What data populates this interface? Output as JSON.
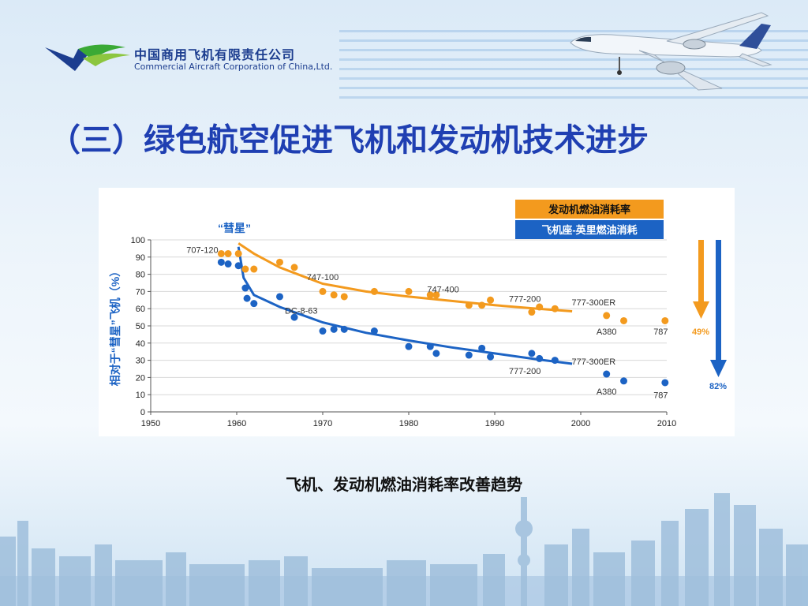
{
  "company": {
    "name_cn": "中国商用飞机有限责任公司",
    "name_en": "Commercial Aircraft Corporation of China,Ltd."
  },
  "slide": {
    "title": "（三）绿色航空促进飞机和发动机技术进步",
    "caption": "飞机、发动机燃油消耗率改善趋势"
  },
  "colors": {
    "engine": "#f39a1e",
    "seat": "#1c63c4",
    "title": "#1f3fb2"
  },
  "chart_data": {
    "type": "scatter",
    "ylabel": "相对于“彗星”飞机（%）",
    "xlim": [
      1950,
      2010
    ],
    "ylim": [
      0,
      100
    ],
    "x_ticks": [
      "1950",
      "1960",
      "1970",
      "1980",
      "1990",
      "2000",
      "2010"
    ],
    "y_ticks": [
      "0",
      "10",
      "20",
      "30",
      "40",
      "50",
      "60",
      "70",
      "80",
      "90",
      "100"
    ],
    "comet_label": "“彗星”",
    "legend": {
      "engine": "发动机燃油消耗率",
      "seat": "飞机座-英里燃油消耗"
    },
    "series": [
      {
        "name": "发动机燃油消耗率",
        "color": "#f39a1e",
        "points": [
          [
            1958.2,
            92
          ],
          [
            1959,
            92
          ],
          [
            1960.2,
            92
          ],
          [
            1961,
            83
          ],
          [
            1962,
            83
          ],
          [
            1965,
            87
          ],
          [
            1966.7,
            84
          ],
          [
            1970,
            70
          ],
          [
            1971.3,
            68
          ],
          [
            1972.5,
            67
          ],
          [
            1976,
            70
          ],
          [
            1980,
            70
          ],
          [
            1982.5,
            68
          ],
          [
            1983.2,
            68
          ],
          [
            1987,
            62
          ],
          [
            1988.5,
            62
          ],
          [
            1989.5,
            65
          ],
          [
            1994.3,
            58
          ],
          [
            1995.2,
            61
          ],
          [
            1997,
            60
          ],
          [
            2003,
            56
          ],
          [
            2005,
            53
          ],
          [
            2009.8,
            53
          ]
        ],
        "trend": [
          [
            1960.2,
            98
          ],
          [
            1962,
            92
          ],
          [
            1965,
            84
          ],
          [
            1970,
            74.5
          ],
          [
            1975,
            70
          ],
          [
            1980,
            67
          ],
          [
            1985,
            64.5
          ],
          [
            1990,
            62
          ],
          [
            1995,
            60
          ],
          [
            1999,
            58.5
          ]
        ],
        "arrow_label": "49%"
      },
      {
        "name": "飞机座-英里燃油消耗",
        "color": "#1c63c4",
        "points": [
          [
            1958.2,
            87
          ],
          [
            1959,
            86
          ],
          [
            1960.2,
            85
          ],
          [
            1961,
            72
          ],
          [
            1961.2,
            66
          ],
          [
            1962,
            63
          ],
          [
            1965,
            67
          ],
          [
            1966.7,
            55
          ],
          [
            1970,
            47
          ],
          [
            1971.3,
            48
          ],
          [
            1972.5,
            48
          ],
          [
            1976,
            47
          ],
          [
            1980,
            38
          ],
          [
            1982.5,
            38
          ],
          [
            1983.2,
            34
          ],
          [
            1987,
            33
          ],
          [
            1988.5,
            37
          ],
          [
            1989.5,
            32
          ],
          [
            1994.3,
            34
          ],
          [
            1995.2,
            31
          ],
          [
            1997,
            30
          ],
          [
            2003,
            22
          ],
          [
            2005,
            18
          ],
          [
            2009.8,
            17
          ]
        ],
        "trend": [
          [
            1960.2,
            96
          ],
          [
            1960.8,
            78
          ],
          [
            1962,
            68
          ],
          [
            1965,
            61
          ],
          [
            1970,
            52
          ],
          [
            1975,
            46
          ],
          [
            1980,
            41.5
          ],
          [
            1985,
            37.5
          ],
          [
            1990,
            34
          ],
          [
            1995,
            30.5
          ],
          [
            1999,
            28
          ]
        ],
        "arrow_label": "82%"
      }
    ],
    "annotations": [
      {
        "text": "707-120",
        "x": 1956,
        "y": 92.5
      },
      {
        "text": "747-100",
        "x": 1970,
        "y": 76.5
      },
      {
        "text": "747-400",
        "x": 1984,
        "y": 69.5
      },
      {
        "text": "777-200",
        "x": 1993.5,
        "y": 64
      },
      {
        "text": "DC-8-63",
        "x": 1967.5,
        "y": 57
      },
      {
        "text": "777-200",
        "x": 1993.5,
        "y": 22
      },
      {
        "text": "777-300ER",
        "x": 2001.5,
        "y": 62
      },
      {
        "text": "A380",
        "x": 2003,
        "y": 45
      },
      {
        "text": "787",
        "x": 2009.3,
        "y": 45
      },
      {
        "text": "777-300ER",
        "x": 2001.5,
        "y": 27.5
      },
      {
        "text": "A380",
        "x": 2003,
        "y": 10
      },
      {
        "text": "787",
        "x": 2009.3,
        "y": 8
      }
    ]
  }
}
